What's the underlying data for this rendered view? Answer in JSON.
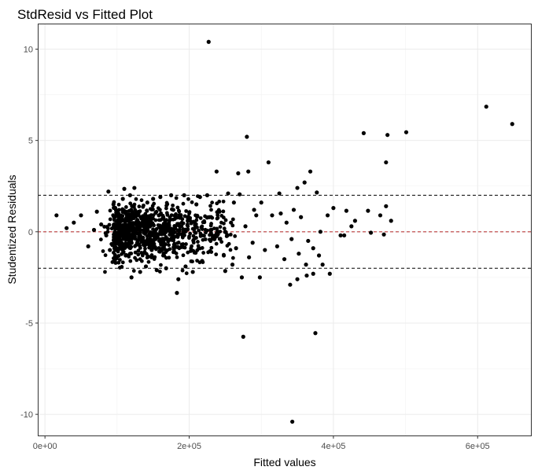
{
  "chart_data": {
    "type": "scatter",
    "title": "StdResid vs Fitted Plot",
    "xlabel": "Fitted values",
    "ylabel": "Studentized Residuals",
    "xlim": [
      -10000,
      675000
    ],
    "ylim": [
      -11.2,
      11.4
    ],
    "x_ticks": [
      0,
      200000,
      400000,
      600000
    ],
    "x_tick_labels": [
      "0e+00",
      "2e+05",
      "4e+05",
      "6e+05"
    ],
    "y_ticks": [
      -10,
      -5,
      0,
      5,
      10
    ],
    "y_tick_labels": [
      "-10",
      "-5",
      "0",
      "5",
      "10"
    ],
    "grid": true,
    "reference_lines": [
      {
        "y": 2,
        "style": "dashed",
        "color": "#000000"
      },
      {
        "y": 0,
        "style": "dashed",
        "color": "#b22222"
      },
      {
        "y": -2,
        "style": "dashed",
        "color": "#000000"
      }
    ],
    "points": [
      [
        227000,
        10.4
      ],
      [
        612000,
        6.85
      ],
      [
        648000,
        5.9
      ],
      [
        442000,
        5.4
      ],
      [
        475000,
        5.3
      ],
      [
        501000,
        5.45
      ],
      [
        280000,
        5.2
      ],
      [
        473000,
        3.8
      ],
      [
        310000,
        3.8
      ],
      [
        368000,
        3.3
      ],
      [
        238000,
        3.3
      ],
      [
        268000,
        3.2
      ],
      [
        282000,
        3.3
      ],
      [
        360000,
        2.7
      ],
      [
        350000,
        2.4
      ],
      [
        325000,
        2.1
      ],
      [
        377000,
        2.15
      ],
      [
        254000,
        2.1
      ],
      [
        270000,
        2.05
      ],
      [
        225000,
        2.0
      ],
      [
        193000,
        2.0
      ],
      [
        88000,
        2.2
      ],
      [
        110000,
        2.35
      ],
      [
        124000,
        2.4
      ],
      [
        175000,
        2.0
      ],
      [
        150000,
        1.8
      ],
      [
        16000,
        0.9
      ],
      [
        30000,
        0.2
      ],
      [
        40000,
        0.5
      ],
      [
        50000,
        0.9
      ],
      [
        60000,
        -0.8
      ],
      [
        120000,
        -2.5
      ],
      [
        132000,
        -2.2
      ],
      [
        155000,
        -2.1
      ],
      [
        185000,
        -2.6
      ],
      [
        205000,
        -2.2
      ],
      [
        183000,
        -3.35
      ],
      [
        250000,
        -2.15
      ],
      [
        273000,
        -2.5
      ],
      [
        298000,
        -2.5
      ],
      [
        340000,
        -2.9
      ],
      [
        350000,
        -2.6
      ],
      [
        372000,
        -2.3
      ],
      [
        395000,
        -2.3
      ],
      [
        363000,
        -2.4
      ],
      [
        385000,
        -1.8
      ],
      [
        275000,
        -5.75
      ],
      [
        375000,
        -5.55
      ],
      [
        343000,
        -10.4
      ],
      [
        473000,
        1.4
      ],
      [
        465000,
        0.9
      ],
      [
        480000,
        0.6
      ],
      [
        430000,
        0.6
      ],
      [
        418000,
        1.15
      ],
      [
        415000,
        -0.2
      ],
      [
        425000,
        0.3
      ],
      [
        452000,
        -0.05
      ],
      [
        470000,
        -0.15
      ],
      [
        448000,
        1.15
      ],
      [
        400000,
        1.3
      ],
      [
        392000,
        0.9
      ],
      [
        410000,
        -0.2
      ],
      [
        327000,
        1.0
      ],
      [
        335000,
        0.5
      ],
      [
        345000,
        1.2
      ],
      [
        355000,
        0.8
      ],
      [
        365000,
        -0.5
      ],
      [
        382000,
        0.0
      ],
      [
        300000,
        1.6
      ],
      [
        315000,
        0.9
      ],
      [
        290000,
        1.2
      ],
      [
        305000,
        -1.0
      ],
      [
        322000,
        -0.8
      ],
      [
        332000,
        -1.5
      ],
      [
        342000,
        -0.4
      ],
      [
        352000,
        -1.2
      ],
      [
        362000,
        -1.8
      ],
      [
        372000,
        -0.9
      ],
      [
        380000,
        -1.3
      ],
      [
        95000,
        1.5
      ],
      [
        102000,
        1.0
      ],
      [
        108000,
        1.8
      ],
      [
        115000,
        0.7
      ],
      [
        122000,
        1.4
      ],
      [
        128000,
        -0.6
      ],
      [
        135000,
        0.4
      ],
      [
        142000,
        1.6
      ],
      [
        148000,
        -1.0
      ],
      [
        158000,
        0.9
      ],
      [
        165000,
        -1.3
      ],
      [
        172000,
        0.3
      ],
      [
        178000,
        1.2
      ],
      [
        190000,
        -0.7
      ],
      [
        198000,
        0.6
      ],
      [
        210000,
        1.5
      ],
      [
        218000,
        -1.6
      ],
      [
        228000,
        0.8
      ],
      [
        235000,
        -0.4
      ],
      [
        242000,
        1.1
      ],
      [
        248000,
        -1.3
      ],
      [
        258000,
        0.5
      ],
      [
        265000,
        -0.9
      ],
      [
        78000,
        0.4
      ],
      [
        85000,
        -0.2
      ],
      [
        72000,
        1.1
      ],
      [
        68000,
        0.1
      ],
      [
        90000,
        -1.0
      ],
      [
        98000,
        -1.7
      ],
      [
        112000,
        -1.3
      ],
      [
        118000,
        2.0
      ],
      [
        140000,
        -1.9
      ],
      [
        160000,
        1.9
      ],
      [
        168000,
        -2.0
      ],
      [
        195000,
        -1.9
      ],
      [
        215000,
        1.9
      ],
      [
        260000,
        -1.8
      ],
      [
        283000,
        -1.4
      ],
      [
        293000,
        0.9
      ],
      [
        288000,
        -0.6
      ],
      [
        278000,
        0.3
      ],
      [
        262000,
        1.6
      ]
    ]
  }
}
